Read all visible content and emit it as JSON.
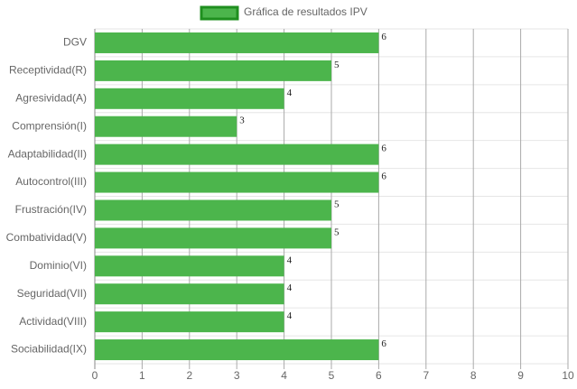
{
  "chart_data": {
    "type": "hbar",
    "legend": "Gráfica de resultados IPV",
    "legend_position": "top",
    "categories": [
      "DGV",
      "Receptividad(R)",
      "Agresividad(A)",
      "Comprensión(I)",
      "Adaptabilidad(II)",
      "Autocontrol(III)",
      "Frustración(IV)",
      "Combatividad(V)",
      "Dominio(VI)",
      "Seguridad(VII)",
      "Actividad(VIII)",
      "Sociabilidad(IX)"
    ],
    "values": [
      6,
      5,
      4,
      3,
      6,
      6,
      5,
      5,
      4,
      4,
      4,
      6
    ],
    "color": "#4cb54c",
    "border_color": "#1f8f1f",
    "xlim": [
      0,
      10
    ],
    "xticks": [
      0,
      1,
      2,
      3,
      4,
      5,
      6,
      7,
      8,
      9,
      10
    ],
    "grid": true
  }
}
